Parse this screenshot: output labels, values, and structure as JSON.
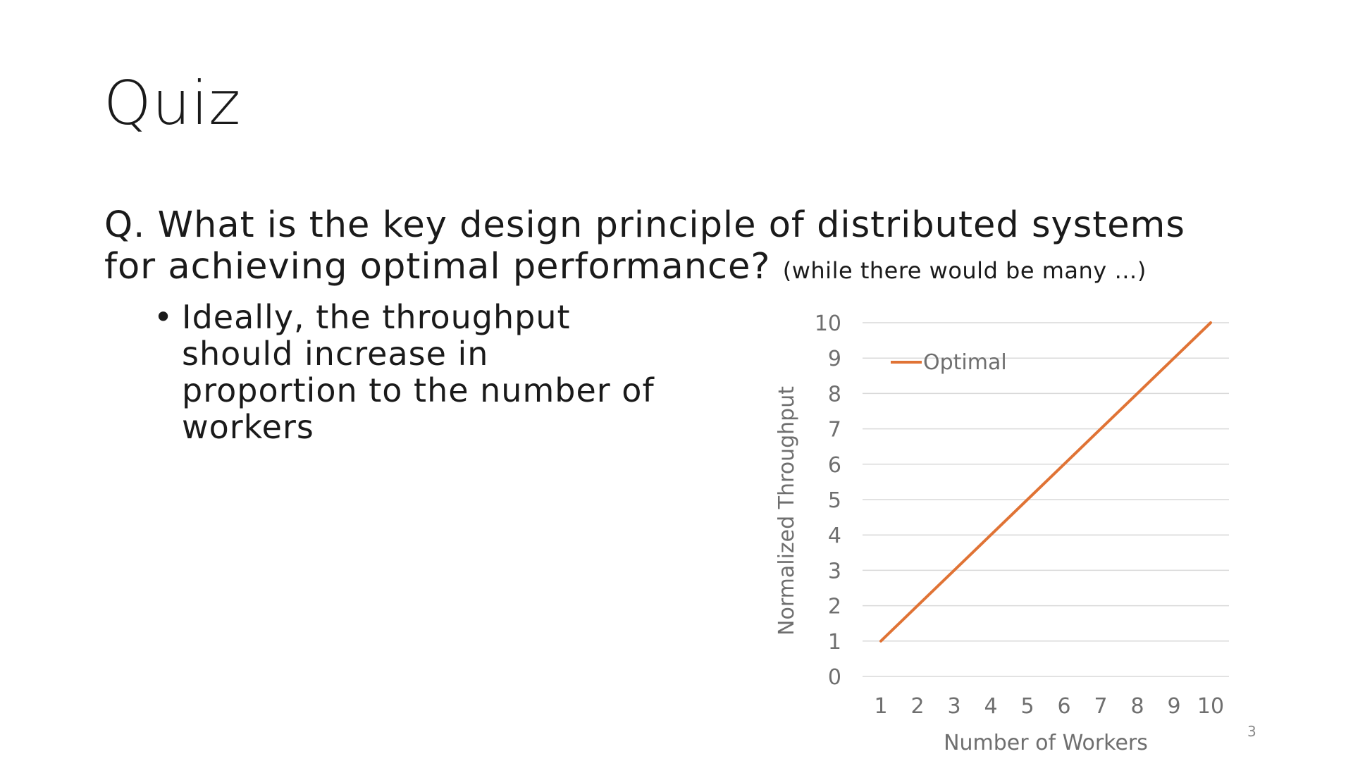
{
  "slide": {
    "title": "Quiz",
    "question_main": "Q. What is the key design principle of distributed systems for achieving optimal performance?",
    "question_aside": "(while there would be many …)",
    "bullet_text": "Ideally, the throughput should increase in proportion to the number of workers",
    "page_number": "3"
  },
  "colors": {
    "line": "#E07335",
    "grid": "#d9d9d9",
    "axis_text": "#6f6f6f"
  },
  "chart_data": {
    "type": "line",
    "categories": [
      "1",
      "2",
      "3",
      "4",
      "5",
      "6",
      "7",
      "8",
      "9",
      "10"
    ],
    "series": [
      {
        "name": "Optimal",
        "values": [
          1,
          2,
          3,
          4,
          5,
          6,
          7,
          8,
          9,
          10
        ]
      }
    ],
    "xlabel": "Number of Workers",
    "ylabel": "Normalized Throughput",
    "ylim": [
      0,
      10
    ],
    "yticks": [
      0,
      1,
      2,
      3,
      4,
      5,
      6,
      7,
      8,
      9,
      10
    ],
    "grid": true,
    "legend": "top-left"
  }
}
